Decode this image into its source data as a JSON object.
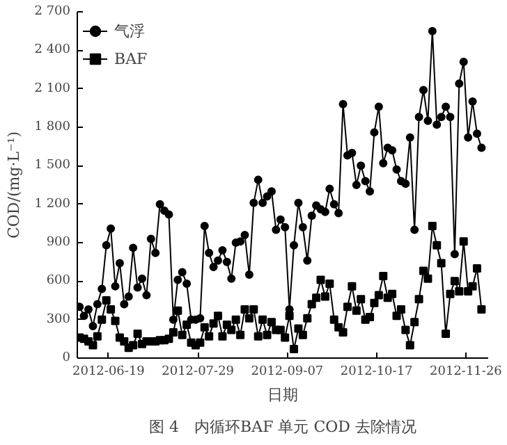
{
  "chart_data": {
    "type": "line",
    "title": "图 4　内循环BAF 单元 COD 去除情况",
    "xlabel": "日期",
    "ylabel": "COD/(mg·L⁻¹)",
    "x": [
      "2012-06-06",
      "2012-06-08",
      "2012-06-10",
      "2012-06-12",
      "2012-06-14",
      "2012-06-16",
      "2012-06-18",
      "2012-06-20",
      "2012-06-22",
      "2012-06-24",
      "2012-06-26",
      "2012-06-28",
      "2012-06-30",
      "2012-07-02",
      "2012-07-04",
      "2012-07-06",
      "2012-07-08",
      "2012-07-10",
      "2012-07-12",
      "2012-07-14",
      "2012-07-16",
      "2012-07-18",
      "2012-07-20",
      "2012-07-22",
      "2012-07-24",
      "2012-07-26",
      "2012-07-28",
      "2012-07-30",
      "2012-08-01",
      "2012-08-03",
      "2012-08-05",
      "2012-08-07",
      "2012-08-09",
      "2012-08-11",
      "2012-08-13",
      "2012-08-15",
      "2012-08-17",
      "2012-08-19",
      "2012-08-21",
      "2012-08-23",
      "2012-08-25",
      "2012-08-27",
      "2012-08-29",
      "2012-08-31",
      "2012-09-02",
      "2012-09-04",
      "2012-09-06",
      "2012-09-08",
      "2012-09-10",
      "2012-09-12",
      "2012-09-14",
      "2012-09-16",
      "2012-09-18",
      "2012-09-20",
      "2012-09-22",
      "2012-09-24",
      "2012-09-26",
      "2012-09-28",
      "2012-09-30",
      "2012-10-02",
      "2012-10-04",
      "2012-10-06",
      "2012-10-08",
      "2012-10-10",
      "2012-10-12",
      "2012-10-14",
      "2012-10-16",
      "2012-10-18",
      "2012-10-20",
      "2012-10-22",
      "2012-10-24",
      "2012-10-26",
      "2012-10-28",
      "2012-10-30",
      "2012-11-01",
      "2012-11-03",
      "2012-11-05",
      "2012-11-07",
      "2012-11-09",
      "2012-11-11",
      "2012-11-13",
      "2012-11-15",
      "2012-11-17",
      "2012-11-19",
      "2012-11-21",
      "2012-11-23",
      "2012-11-25",
      "2012-11-27",
      "2012-11-29",
      "2012-12-01",
      "2012-12-03"
    ],
    "series": [
      {
        "name": "气浮",
        "color": "#000000",
        "marker": "circle",
        "values": [
          400,
          330,
          380,
          250,
          420,
          540,
          880,
          1010,
          560,
          740,
          420,
          480,
          860,
          550,
          620,
          490,
          930,
          820,
          1200,
          1150,
          1120,
          300,
          610,
          670,
          580,
          300,
          300,
          310,
          1030,
          820,
          710,
          760,
          840,
          750,
          620,
          900,
          910,
          960,
          650,
          1210,
          1390,
          1210,
          1260,
          1300,
          1000,
          1080,
          1020,
          380,
          880,
          1210,
          1020,
          760,
          1110,
          1190,
          1160,
          1140,
          1320,
          1200,
          1130,
          1980,
          1580,
          1600,
          1350,
          1500,
          1380,
          1300,
          1760,
          1960,
          1520,
          1640,
          1620,
          1470,
          1380,
          1360,
          1720,
          1000,
          1880,
          2090,
          1850,
          2550,
          1820,
          1880,
          1960,
          1880,
          810,
          2140,
          2310,
          1720,
          2000,
          1750,
          1640
        ]
      },
      {
        "name": "BAF",
        "color": "#000000",
        "marker": "square",
        "values": [
          160,
          150,
          130,
          100,
          170,
          300,
          450,
          380,
          290,
          160,
          130,
          80,
          100,
          190,
          110,
          130,
          130,
          130,
          140,
          140,
          150,
          200,
          370,
          180,
          260,
          120,
          100,
          120,
          240,
          170,
          270,
          330,
          170,
          260,
          220,
          300,
          180,
          380,
          310,
          380,
          170,
          300,
          180,
          280,
          220,
          220,
          160,
          330,
          70,
          230,
          180,
          310,
          420,
          470,
          610,
          480,
          580,
          300,
          240,
          200,
          400,
          560,
          370,
          460,
          300,
          320,
          430,
          490,
          640,
          470,
          500,
          330,
          380,
          220,
          100,
          280,
          460,
          680,
          620,
          1030,
          880,
          740,
          190,
          500,
          600,
          520,
          910,
          520,
          560,
          700,
          380
        ]
      }
    ],
    "xlim": [
      "2012-06-05",
      "2012-12-06"
    ],
    "xticks": [
      "2012-06-19",
      "2012-07-29",
      "2012-09-07",
      "2012-10-17",
      "2012-11-26"
    ],
    "ylim": [
      0,
      2700
    ],
    "yticks": [
      0,
      300,
      600,
      900,
      {
        "value": 1200,
        "label": "1 200"
      },
      {
        "value": 1500,
        "label": "1 500"
      },
      {
        "value": 1800,
        "label": "1 800"
      },
      {
        "value": 2100,
        "label": "2 100"
      },
      {
        "value": 2400,
        "label": "2 400"
      },
      {
        "value": 2700,
        "label": "2 700"
      }
    ],
    "grid": false,
    "legend": "top left",
    "line_style": "solid"
  }
}
